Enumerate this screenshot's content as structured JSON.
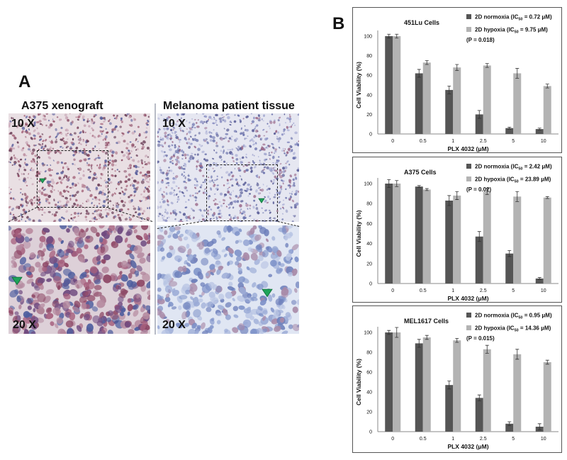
{
  "panel_a": {
    "letter": "A",
    "left_title": "A375 xenograft",
    "right_title": "Melanoma patient tissue",
    "mag_low": "10 X",
    "mag_high": "20 X"
  },
  "panel_b": {
    "letter": "B"
  },
  "colors": {
    "normoxia": "#555555",
    "hypoxia": "#b3b3b3",
    "arrow": "#1fa35a"
  },
  "chart_data": [
    {
      "type": "bar",
      "title": "451Lu Cells",
      "xlabel": "PLX 4032 (μM)",
      "ylabel": "Cell Viability (%)",
      "categories": [
        "0",
        "0.5",
        "1",
        "2.5",
        "5",
        "10"
      ],
      "ylim": [
        0,
        100
      ],
      "yticks": [
        0,
        20,
        40,
        60,
        80,
        100
      ],
      "series": [
        {
          "name": "2D normoxia (IC50 = 0.72 μM)",
          "label_main": "2D normoxia (IC",
          "label_sub": "50",
          "label_tail": " = 0.72 μM)",
          "values": [
            100,
            62,
            45,
            20,
            6,
            5
          ],
          "errors": [
            2,
            4,
            4,
            4,
            1,
            1
          ]
        },
        {
          "name": "2D hypoxia (IC50 = 9.75 μM)",
          "label_main": "2D hypoxia   (IC",
          "label_sub": "50",
          "label_tail": " = 9.75 μM)",
          "values": [
            100,
            73,
            68,
            70,
            62,
            49
          ],
          "errors": [
            2,
            2,
            3,
            2,
            5,
            2
          ]
        }
      ],
      "annotation": "(P = 0.018)"
    },
    {
      "type": "bar",
      "title": "A375 Cells",
      "xlabel": "PLX 4032 (μM)",
      "ylabel": "Cell Viability (%)",
      "categories": [
        "0",
        "0.5",
        "1",
        "2.5",
        "5",
        "10"
      ],
      "ylim": [
        0,
        100
      ],
      "yticks": [
        0,
        20,
        40,
        60,
        80,
        100
      ],
      "series": [
        {
          "name": "2D normoxia (IC50 = 2.42 μM)",
          "label_main": "2D normoxia (IC",
          "label_sub": "50",
          "label_tail": " = 2.42 μM)",
          "values": [
            100,
            97,
            83,
            47,
            30,
            5
          ],
          "errors": [
            4,
            1,
            5,
            5,
            3,
            1
          ]
        },
        {
          "name": "2D hypoxia (IC50 = 23.89 μM)",
          "label_main": "2D hypoxia   (IC",
          "label_sub": "50",
          "label_tail": " = 23.89 μM)",
          "values": [
            100,
            94,
            88,
            92,
            87,
            86
          ],
          "errors": [
            3,
            1,
            4,
            3,
            5,
            1
          ]
        }
      ],
      "annotation": "(P = 0.02)"
    },
    {
      "type": "bar",
      "title": "MEL1617 Cells",
      "xlabel": "PLX 4032 (μM)",
      "ylabel": "Cell Viability (%)",
      "categories": [
        "0",
        "0.5",
        "1",
        "2.5",
        "5",
        "10"
      ],
      "ylim": [
        0,
        100
      ],
      "yticks": [
        0,
        20,
        40,
        60,
        80,
        100
      ],
      "series": [
        {
          "name": "2D normoxia (IC50 = 0.95 μM)",
          "label_main": "2D normoxia (IC",
          "label_sub": "50",
          "label_tail": " = 0.95 μM)",
          "values": [
            100,
            89,
            47,
            34,
            8,
            5
          ],
          "errors": [
            2,
            4,
            4,
            3,
            2,
            3
          ]
        },
        {
          "name": "2D hypoxia (IC50 = 14.36 μM)",
          "label_main": "2D hypoxia   (IC",
          "label_sub": "50",
          "label_tail": " = 14.36 μM)",
          "values": [
            100,
            95,
            92,
            83,
            78,
            70
          ],
          "errors": [
            5,
            2,
            2,
            4,
            5,
            2
          ]
        }
      ],
      "annotation": "(P = 0.015)"
    }
  ]
}
